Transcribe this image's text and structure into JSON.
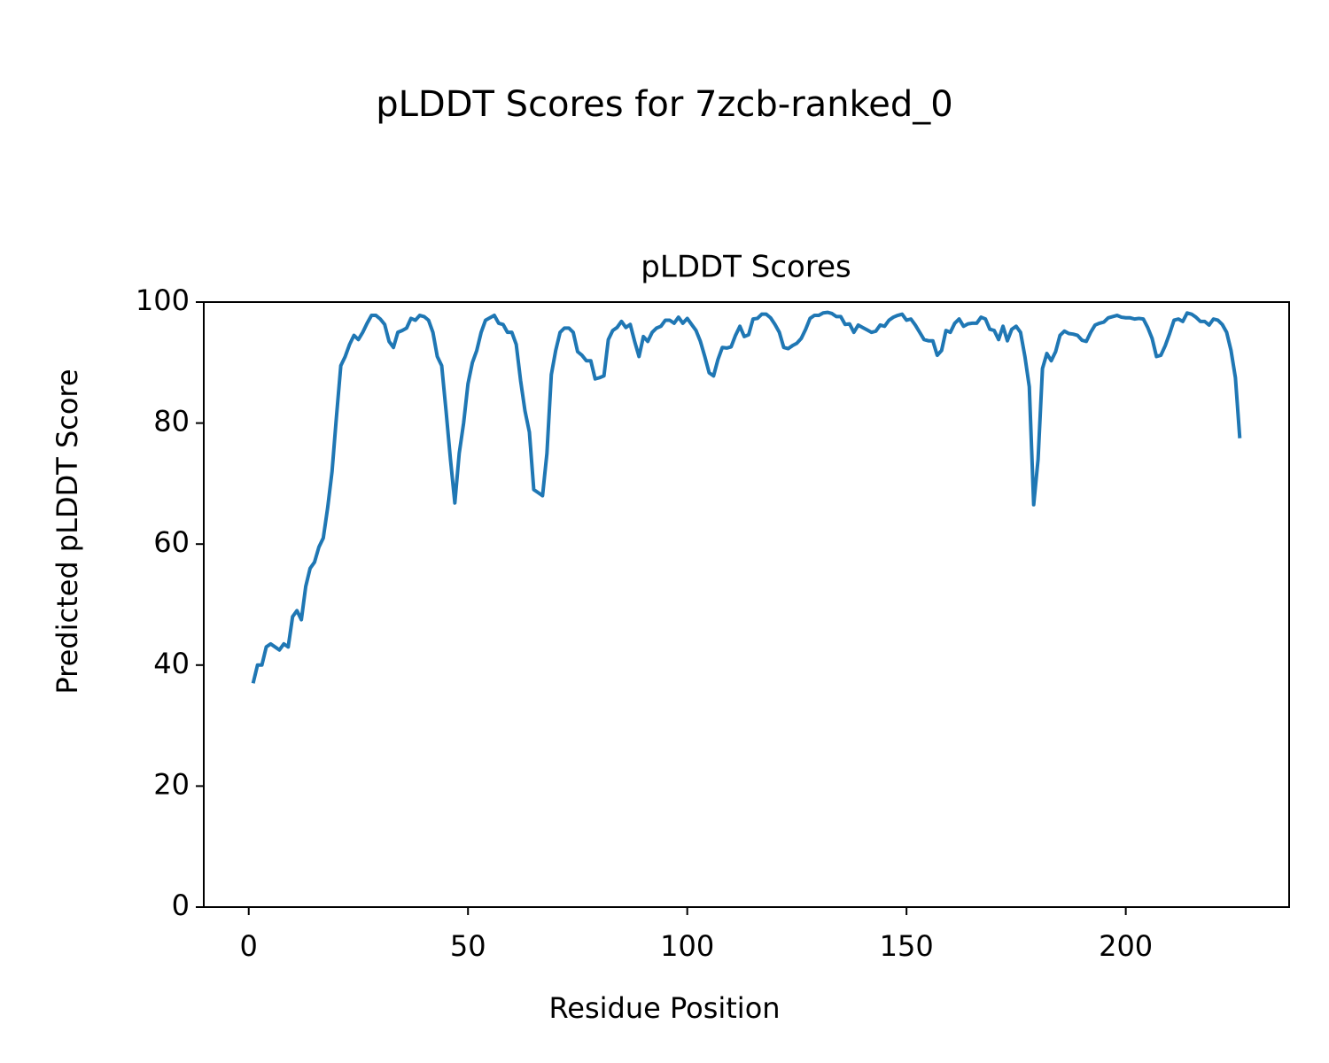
{
  "chart_data": {
    "type": "line",
    "title": "pLDDT Scores for 7zcb-ranked_0",
    "subtitle": "pLDDT Scores",
    "xlabel": "Residue Position",
    "ylabel": "Predicted pLDDT Score",
    "color": "#1f77b4",
    "x": [
      1,
      2,
      3,
      4,
      5,
      6,
      7,
      8,
      9,
      10,
      11,
      12,
      13,
      14,
      15,
      16,
      17,
      18,
      19,
      20,
      21,
      22,
      23,
      24,
      25,
      26,
      27,
      28,
      29,
      30,
      31,
      32,
      33,
      34,
      35,
      36,
      37,
      38,
      39,
      40,
      41,
      42,
      43,
      44,
      45,
      46,
      47,
      48,
      49,
      50,
      51,
      52,
      53,
      54,
      55,
      56,
      57,
      58,
      59,
      60,
      61,
      62,
      63,
      64,
      65,
      66,
      67,
      68,
      69,
      70,
      71,
      72,
      73,
      74,
      75,
      76,
      77,
      78,
      79,
      80,
      81,
      82,
      83,
      84,
      85,
      86,
      87,
      88,
      89,
      90,
      91,
      92,
      93,
      94,
      95,
      96,
      97,
      98,
      99,
      100,
      101,
      102,
      103,
      104,
      105,
      106,
      107,
      108,
      109,
      110,
      111,
      112,
      113,
      114,
      115,
      116,
      117,
      118,
      119,
      120,
      121,
      122,
      123,
      124,
      125,
      126,
      127,
      128,
      129,
      130,
      131,
      132,
      133,
      134,
      135,
      136,
      137,
      138,
      139,
      140,
      141,
      142,
      143,
      144,
      145,
      146,
      147,
      148,
      149,
      150,
      151,
      152,
      153,
      154,
      155,
      156,
      157,
      158,
      159,
      160,
      161,
      162,
      163,
      164,
      165,
      166,
      167,
      168,
      169,
      170,
      171,
      172,
      173,
      174,
      175,
      176,
      177,
      178,
      179,
      180,
      181,
      182,
      183,
      184,
      185,
      186,
      187,
      188,
      189,
      190,
      191,
      192,
      193,
      194,
      195,
      196,
      197,
      198,
      199,
      200,
      201,
      202,
      203,
      204,
      205,
      206,
      207,
      208,
      209,
      210,
      211,
      212,
      213,
      214,
      215,
      216,
      217,
      218,
      219,
      220,
      221,
      222,
      223,
      224,
      225,
      226
    ],
    "values": [
      37,
      40,
      40,
      43,
      43.5,
      43,
      42.5,
      43.5,
      43,
      48,
      49,
      47.5,
      53,
      56,
      57,
      59.5,
      61,
      66,
      72,
      81,
      89.5,
      91,
      93,
      94.5,
      93.8,
      95,
      96.5,
      97.8,
      97.8,
      97.2,
      96.3,
      93.5,
      92.5,
      95,
      95.3,
      95.7,
      97.3,
      97,
      97.8,
      97.6,
      97,
      95,
      91,
      89.5,
      82,
      74,
      66.8,
      75,
      80,
      86.5,
      90,
      92,
      95,
      97,
      97.4,
      97.8,
      96.5,
      96.3,
      95,
      95,
      93,
      87,
      82,
      78.5,
      69,
      68.5,
      68,
      75,
      88,
      92,
      95,
      95.7,
      95.7,
      95,
      91.8,
      91.2,
      90.3,
      90.3,
      87.3,
      87.5,
      87.8,
      93.8,
      95.3,
      95.8,
      96.8,
      95.8,
      96.3,
      93.5,
      91,
      94.3,
      93.5,
      95,
      95.7,
      96,
      97,
      97,
      96.5,
      97.5,
      96.5,
      97.3,
      96.3,
      95.3,
      93.5,
      91,
      88.3,
      87.8,
      90.5,
      92.5,
      92.4,
      92.6,
      94.5,
      96,
      94.3,
      94.6,
      97.2,
      97.3,
      98,
      98,
      97.4,
      96.3,
      95,
      92.5,
      92.3,
      92.8,
      93.2,
      94,
      95.5,
      97.3,
      97.8,
      97.8,
      98.2,
      98.3,
      98.1,
      97.6,
      97.6,
      96.3,
      96.4,
      95,
      96.2,
      95.8,
      95.4,
      95,
      95.2,
      96.2,
      96,
      97,
      97.5,
      97.8,
      98,
      97,
      97.2,
      96.2,
      95,
      93.8,
      93.6,
      93.6,
      91.2,
      92,
      95.3,
      95,
      96.5,
      97.2,
      96,
      96.4,
      96.5,
      96.5,
      97.5,
      97.2,
      95.5,
      95.3,
      93.8,
      96,
      93.6,
      95.5,
      96,
      95,
      91,
      86,
      66.5,
      74,
      89,
      91.5,
      90.3,
      91.8,
      94.5,
      95.2,
      94.8,
      94.7,
      94.5,
      93.7,
      93.5,
      95,
      96.2,
      96.5,
      96.7,
      97.4,
      97.6,
      97.8,
      97.5,
      97.4,
      97.4,
      97.2,
      97.3,
      97.2,
      95.8,
      94,
      91,
      91.2,
      92.8,
      94.8,
      97,
      97.2,
      96.8,
      98.2,
      98,
      97.5,
      96.8,
      96.8,
      96.2,
      97.2,
      97,
      96.3,
      95,
      92,
      87.5,
      77.5
    ],
    "xlim": [
      -10.25,
      237.25
    ],
    "ylim": [
      0,
      100
    ],
    "xticks": [
      0,
      50,
      100,
      150,
      200
    ],
    "yticks": [
      0,
      20,
      40,
      60,
      80,
      100
    ]
  }
}
